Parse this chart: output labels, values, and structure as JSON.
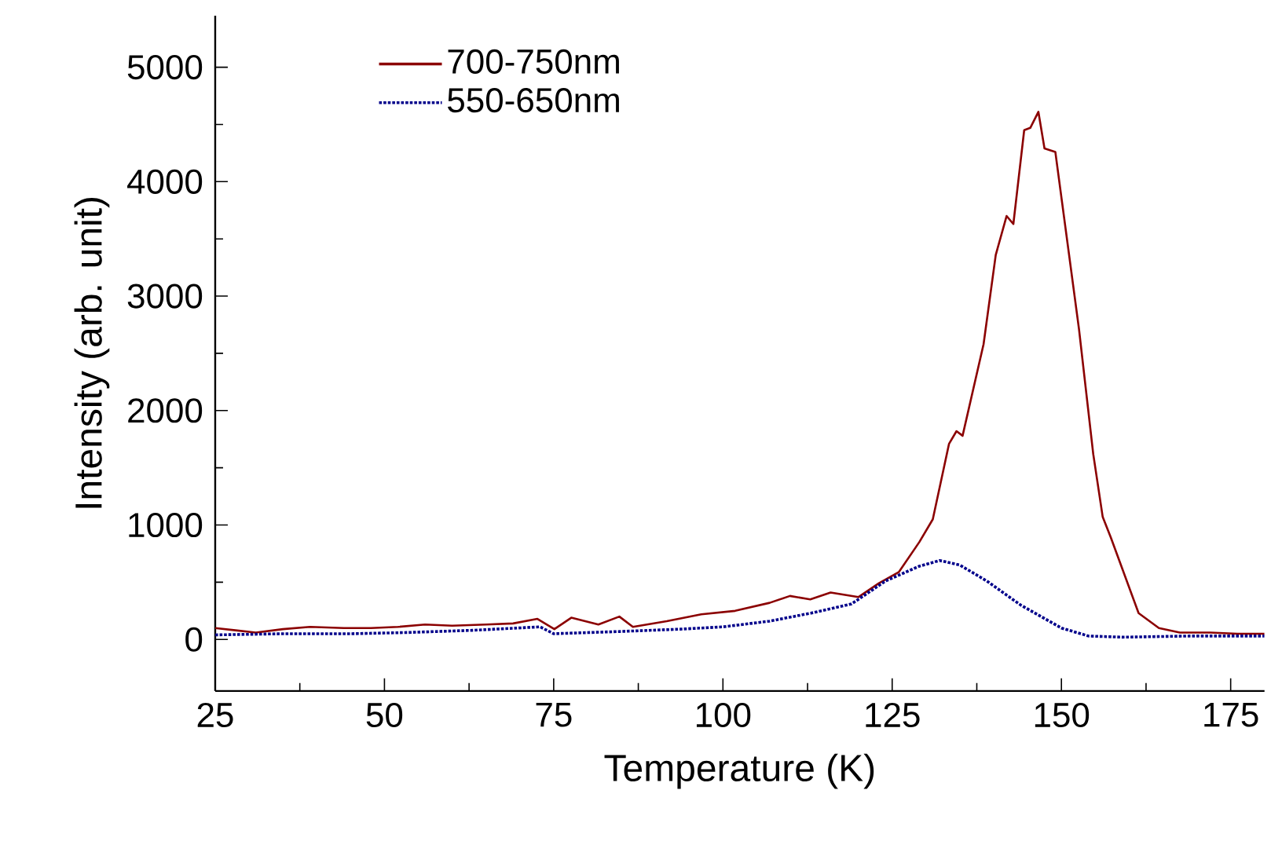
{
  "chart_data": {
    "type": "line",
    "xlabel": "Temperature (K)",
    "ylabel": "Intensity (arb. unit)",
    "xlim": [
      25,
      180
    ],
    "xticks": [
      25,
      50,
      75,
      100,
      125,
      150,
      175
    ],
    "ylim": [
      -450,
      5450
    ],
    "yticks": [
      0,
      1000,
      2000,
      3000,
      4000,
      5000
    ],
    "legend": "top left",
    "marker": "none",
    "grid": false,
    "series": [
      {
        "name": "700-750nm",
        "color": "#8b0000",
        "line_style": "solid",
        "x": [
          25,
          28,
          31,
          35,
          39,
          44,
          48,
          52,
          56,
          60,
          65,
          69,
          72.6,
          75.1,
          77.6,
          81.6,
          84.7,
          86.7,
          91.7,
          96.8,
          101.8,
          106.9,
          109.9,
          112.9,
          115.9,
          120,
          123,
          126,
          129,
          131,
          133.4,
          134.5,
          135.4,
          138.5,
          140.3,
          141.9,
          142.9,
          144.5,
          145.4,
          146.6,
          147.5,
          149.1,
          152.6,
          154.7,
          156.1,
          157.3,
          161.4,
          164.4,
          167.5,
          172,
          176,
          180
        ],
        "values": [
          100,
          80,
          60,
          90,
          110,
          100,
          100,
          110,
          130,
          120,
          130,
          140,
          180,
          90,
          190,
          130,
          200,
          110,
          160,
          220,
          250,
          320,
          380,
          350,
          410,
          370,
          490,
          590,
          850,
          1050,
          1710,
          1820,
          1780,
          2580,
          3360,
          3700,
          3630,
          4450,
          4470,
          4610,
          4290,
          4260,
          2710,
          1620,
          1070,
          890,
          230,
          100,
          60,
          60,
          50,
          50
        ]
      },
      {
        "name": "550-650nm",
        "color": "#00008b",
        "line_style": "dotted",
        "x": [
          25,
          35,
          45,
          53,
          63,
          73,
          75,
          85,
          93.7,
          100,
          106.9,
          113,
          119,
          124,
          129,
          132,
          135,
          139,
          144,
          150,
          154,
          159,
          169,
          180
        ],
        "values": [
          40,
          50,
          50,
          60,
          80,
          110,
          50,
          70,
          90,
          110,
          160,
          230,
          310,
          510,
          640,
          690,
          650,
          510,
          300,
          100,
          30,
          20,
          30,
          30
        ]
      }
    ]
  }
}
